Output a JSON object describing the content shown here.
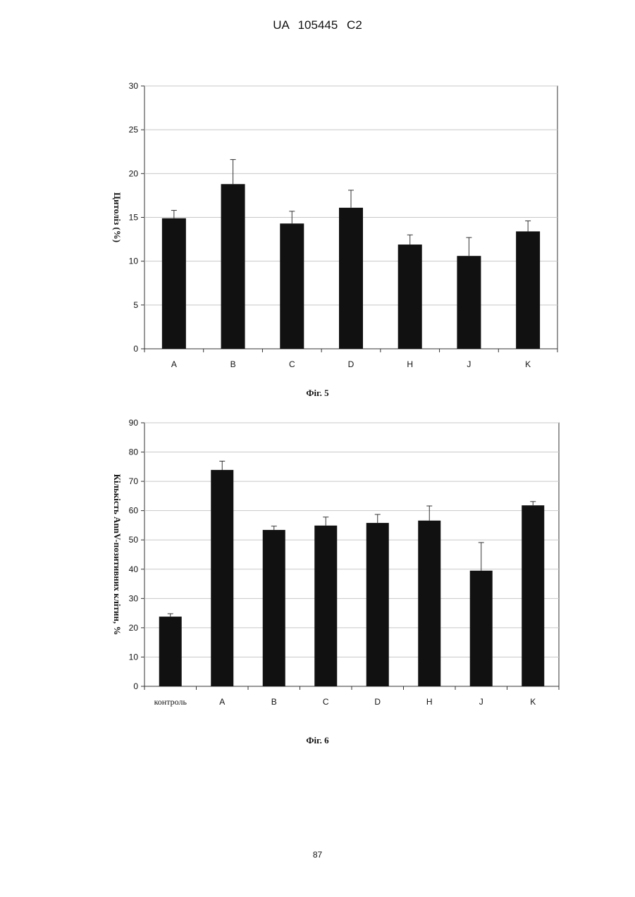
{
  "page": {
    "header": "UA 105445 C2",
    "page_number": "87"
  },
  "colors": {
    "bar": "#111111",
    "grid": "#c8c8c8",
    "axis": "#333333"
  },
  "chart_data": [
    {
      "type": "bar",
      "caption": "Фіг. 5",
      "ylabel": "Цитоліз (%)",
      "xlabel": "",
      "ylim": [
        0,
        30
      ],
      "yticks": [
        0,
        5,
        10,
        15,
        20,
        25,
        30
      ],
      "grid": true,
      "categories": [
        "A",
        "B",
        "C",
        "D",
        "H",
        "J",
        "K"
      ],
      "values": [
        14.9,
        18.8,
        14.3,
        16.1,
        11.9,
        10.6,
        13.4
      ],
      "errors": [
        0.9,
        2.8,
        1.4,
        2.0,
        1.1,
        2.1,
        1.2
      ]
    },
    {
      "type": "bar",
      "caption": "Фіг. 6",
      "ylabel": "Кількість AnnV-позитивних клітин, %",
      "xlabel": "",
      "ylim": [
        0,
        90
      ],
      "yticks": [
        0,
        10,
        20,
        30,
        40,
        50,
        60,
        70,
        80,
        90
      ],
      "grid": true,
      "categories": [
        "контроль",
        "A",
        "B",
        "C",
        "D",
        "H",
        "J",
        "K"
      ],
      "values": [
        23.8,
        73.9,
        53.4,
        54.9,
        55.8,
        56.6,
        39.5,
        61.8
      ],
      "errors": [
        1.0,
        3.0,
        1.3,
        2.9,
        2.9,
        5.0,
        9.6,
        1.3
      ]
    }
  ]
}
